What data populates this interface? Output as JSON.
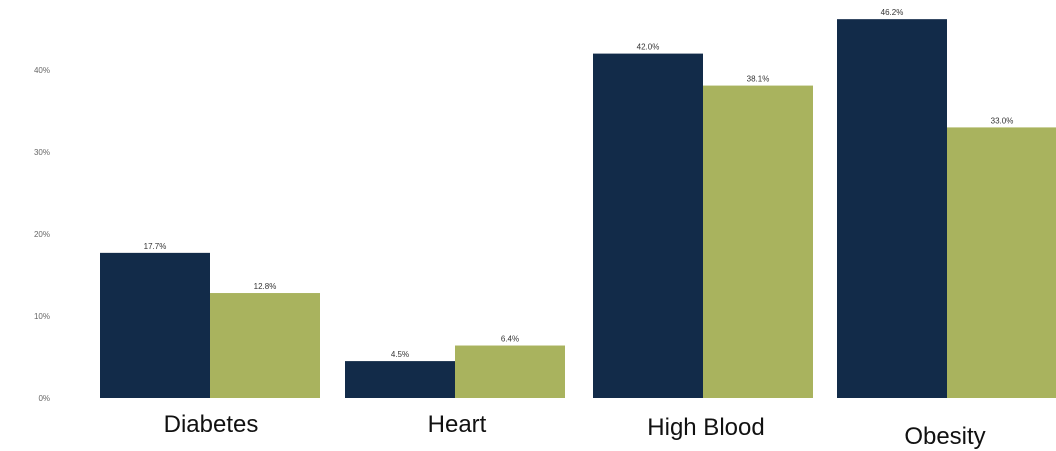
{
  "chart_data": {
    "type": "bar",
    "categories": [
      "Diabetes",
      "Heart",
      "High Blood",
      "Obesity"
    ],
    "series": [
      {
        "values": [
          17.7,
          4.5,
          42.0,
          46.2
        ],
        "value_labels": [
          "17.7%",
          "4.5%",
          "42.0%",
          "46.2%"
        ],
        "color": "#122b49"
      },
      {
        "values": [
          12.8,
          6.4,
          38.1,
          33.0
        ],
        "value_labels": [
          "12.8%",
          "6.4%",
          "38.1%",
          "33.0%"
        ],
        "color": "#a9b35e"
      }
    ],
    "y_ticks": [
      0,
      10,
      20,
      30,
      40
    ],
    "y_tick_labels": [
      "0%",
      "10%",
      "20%",
      "30%",
      "40%"
    ],
    "ylim": [
      0,
      48
    ],
    "grid": false,
    "legend": "none"
  }
}
